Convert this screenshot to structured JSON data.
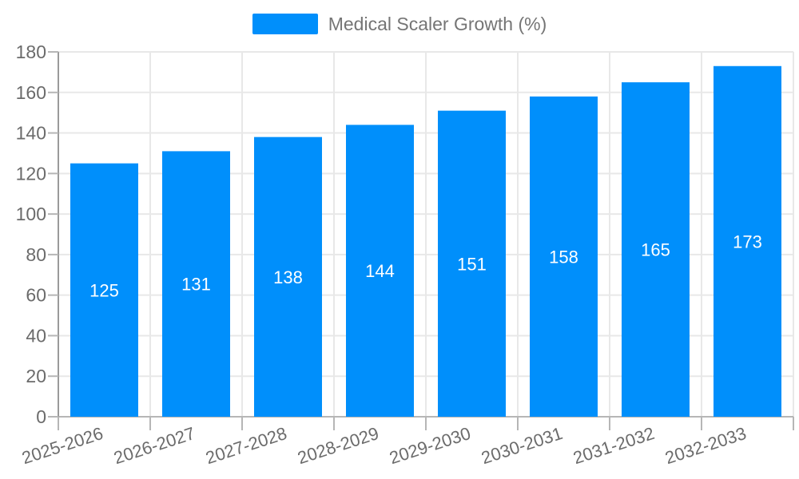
{
  "legend": {
    "label": "Medical Scaler Growth (%)"
  },
  "chart_data": {
    "type": "bar",
    "title": "Medical Scaler Growth (%)",
    "categories": [
      "2025-2026",
      "2026-2027",
      "2027-2028",
      "2028-2029",
      "2029-2030",
      "2030-2031",
      "2031-2032",
      "2032-2033"
    ],
    "values": [
      125,
      131,
      138,
      144,
      151,
      158,
      165,
      173
    ],
    "xlabel": "",
    "ylabel": "",
    "ylim": [
      0,
      180
    ],
    "ytick_step": 20,
    "yticks": [
      0,
      20,
      40,
      60,
      80,
      100,
      120,
      140,
      160,
      180
    ],
    "grid": true,
    "legend_position": "top",
    "colors": {
      "bar": "#008FFB",
      "datalabel": "#ffffff",
      "grid": "#e8e8e8",
      "axis_line": "#9a9a9a",
      "tick": "#b6b6b6",
      "axis_label": "#6b6b6b"
    }
  }
}
